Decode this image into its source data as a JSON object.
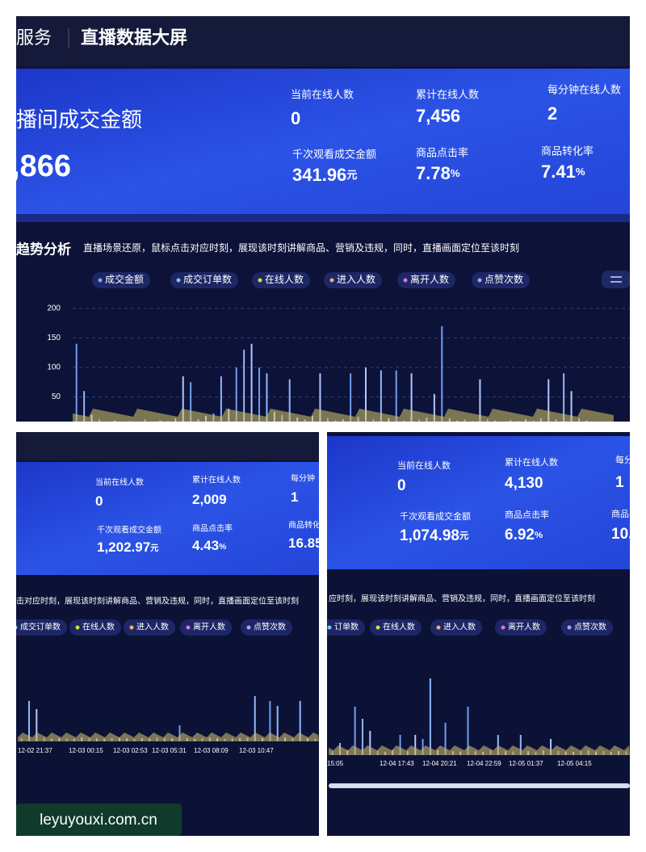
{
  "top_panel": {
    "header": {
      "service": "服务",
      "title": "直播数据大屏"
    },
    "gmv_label": "播间成交金额",
    "gmv_value": ",866",
    "metrics": [
      {
        "label": "当前在线人数",
        "value": "0"
      },
      {
        "label": "累计在线人数",
        "value": "7,456"
      },
      {
        "label": "每分钟在线人数",
        "value": "2"
      },
      {
        "label": "千次观看成交金额",
        "value": "341.96",
        "unit": "元"
      },
      {
        "label": "商品点击率",
        "value": "7.78",
        "unit": "%"
      },
      {
        "label": "商品转化率",
        "value": "7.41",
        "unit": "%"
      }
    ],
    "trend": {
      "title": "趋势分析",
      "subtitle": "直播场景还原，鼠标点击对应时刻，展现该时刻讲解商品、营销及违规，同时，直播画面定位至该时刻",
      "legend": [
        "成交金额",
        "成交订单数",
        "在线人数",
        "进入人数",
        "离开人数",
        "点赞次数"
      ],
      "ylim": [
        0,
        200
      ],
      "yticks": [
        50,
        100,
        150,
        200
      ],
      "values": [
        140,
        60,
        20,
        12,
        8,
        10,
        6,
        9,
        7,
        12,
        8,
        10,
        9,
        14,
        85,
        75,
        12,
        18,
        22,
        85,
        30,
        100,
        130,
        140,
        100,
        90,
        25,
        20,
        80,
        15,
        12,
        18,
        90,
        14,
        10,
        12,
        90,
        16,
        100,
        12,
        95,
        14,
        95,
        10,
        90,
        12,
        15,
        55,
        170,
        14,
        10,
        12,
        9,
        80,
        12,
        10,
        8,
        11,
        9,
        12,
        10,
        14,
        80,
        12,
        90,
        60,
        14,
        10,
        8,
        6
      ]
    }
  },
  "left_panel": {
    "metrics": [
      {
        "label": "当前在线人数",
        "value": "0"
      },
      {
        "label": "累计在线人数",
        "value": "2,009"
      },
      {
        "label": "每分钟",
        "value": "1"
      },
      {
        "label": "千次观看成交金额",
        "value": "1,202.97",
        "unit": "元"
      },
      {
        "label": "商品点击率",
        "value": "4.43",
        "unit": "%"
      },
      {
        "label": "商品转化",
        "value": "16.85"
      }
    ],
    "trend": {
      "subtitle": "击对应时刻，展现该时刻讲解商品、营销及违规，同时，直播画面定位至该时刻",
      "legend": [
        "成交订单数",
        "在线人数",
        "进入人数",
        "离开人数",
        "点赞次数"
      ],
      "x_labels": [
        "12-02 21:37",
        "12-03 00:15",
        "12-03 02:53",
        "12-03 05:31",
        "12-03 08:09",
        "12-03 10:47"
      ],
      "values": [
        10,
        125,
        100,
        12,
        8,
        10,
        9,
        8,
        12,
        10,
        9,
        8,
        10,
        12,
        9,
        8,
        10,
        9,
        12,
        10,
        9,
        50,
        10,
        8,
        9,
        12,
        10,
        8,
        9,
        10,
        12,
        140,
        10,
        125,
        110,
        12,
        10,
        125,
        10,
        8
      ]
    }
  },
  "right_panel": {
    "metrics": [
      {
        "label": "当前在线人数",
        "value": "0"
      },
      {
        "label": "累计在线人数",
        "value": "4,130"
      },
      {
        "label": "每分",
        "value": "1"
      },
      {
        "label": "千次观看成交金额",
        "value": "1,074.98",
        "unit": "元"
      },
      {
        "label": "商品点击率",
        "value": "6.92",
        "unit": "%"
      },
      {
        "label": "商品",
        "value": "10."
      }
    ],
    "trend": {
      "subtitle": "应时刻，展现该时刻讲解商品、营销及违规，同时，直播画面定位至该时刻",
      "legend": [
        "订单数",
        "在线人数",
        "进入人数",
        "离开人数",
        "点赞次数"
      ],
      "x_labels": [
        "15:05",
        "12-04 17:43",
        "12-04 20:21",
        "12-04 22:59",
        "12-05 01:37",
        "12-05 04:15"
      ],
      "values": [
        10,
        30,
        12,
        120,
        90,
        60,
        10,
        8,
        12,
        50,
        10,
        50,
        40,
        190,
        12,
        80,
        10,
        9,
        120,
        10,
        8,
        12,
        50,
        10,
        9,
        50,
        10,
        8,
        12,
        40,
        10,
        9,
        8,
        10,
        12,
        9,
        10,
        8,
        10,
        9
      ]
    }
  }
}
